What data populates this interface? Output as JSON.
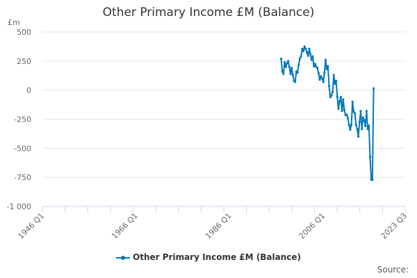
{
  "chart_data": {
    "type": "line",
    "title": "Other Primary Income £M (Balance)",
    "ylabel": "£m",
    "xlabel": "",
    "ylim": [
      -1000,
      500
    ],
    "yticks": [
      500,
      250,
      0,
      -250,
      -500,
      -750,
      -1000
    ],
    "ytick_labels": [
      "500",
      "250",
      "0",
      "-250",
      "-500",
      "-750",
      "-1 000"
    ],
    "xtick_labels": [
      "1946 Q1",
      "1966 Q1",
      "1986 Q1",
      "2006 Q1",
      "2023 Q3"
    ],
    "xrange": [
      "1946 Q1",
      "2023 Q3"
    ],
    "grid": true,
    "legend_position": "bottom",
    "series": [
      {
        "name": "Other Primary Income £M (Balance)",
        "color": "#0077bb",
        "start": "1997 Q1",
        "values": [
          270,
          160,
          140,
          240,
          200,
          230,
          250,
          200,
          140,
          190,
          130,
          80,
          70,
          160,
          150,
          215,
          270,
          290,
          355,
          335,
          375,
          355,
          325,
          295,
          355,
          310,
          260,
          290,
          205,
          225,
          200,
          190,
          145,
          90,
          120,
          100,
          70,
          150,
          260,
          180,
          205,
          35,
          -60,
          -45,
          -15,
          130,
          55,
          80,
          -60,
          -160,
          -95,
          -60,
          -180,
          -80,
          -170,
          -215,
          -210,
          -240,
          -300,
          -340,
          -300,
          -100,
          -185,
          -200,
          -300,
          -335,
          -400,
          -275,
          -180,
          -335,
          -235,
          -260,
          -310,
          -180,
          -335,
          -305,
          -575,
          -770,
          -770,
          15
        ]
      }
    ]
  },
  "header": {
    "title": "Other Primary Income £M (Balance)",
    "unit": "£m"
  },
  "legend": {
    "label": "Other Primary Income £M (Balance)"
  },
  "footer": {
    "source": "Source:"
  }
}
